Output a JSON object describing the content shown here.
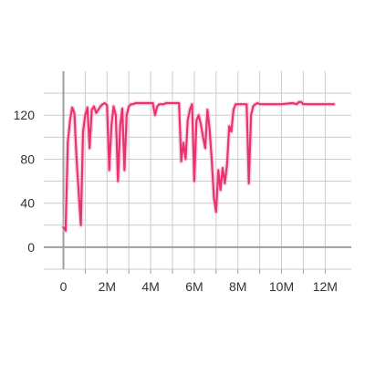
{
  "chart_data": {
    "type": "line",
    "title": "",
    "xlabel": "",
    "ylabel": "",
    "xlim": [
      -900000,
      13200000
    ],
    "ylim": [
      -20,
      160
    ],
    "x_ticks": [
      0,
      2000000,
      4000000,
      6000000,
      8000000,
      10000000,
      12000000
    ],
    "x_tick_labels": [
      "0",
      "2M",
      "4M",
      "6M",
      "8M",
      "10M",
      "12M"
    ],
    "x_minor_ticks": [
      -1000000,
      1000000,
      3000000,
      5000000,
      7000000,
      9000000,
      11000000
    ],
    "y_ticks": [
      0,
      40,
      80,
      120
    ],
    "y_tick_labels": [
      "0",
      "40",
      "80",
      "120"
    ],
    "y_minor_ticks": [
      20,
      60,
      100,
      140
    ],
    "grid": true,
    "colors": {
      "smoothed": "#e8336d",
      "raw": "#f6c4d6",
      "axis": "#9e9e9e",
      "grid": "#cccccc"
    },
    "series": [
      {
        "x": [
          0,
          100000,
          200000,
          300000,
          400000,
          500000,
          600000,
          700000,
          800000,
          900000,
          1000000,
          1100000,
          1200000,
          1300000,
          1400000,
          1500000,
          1600000,
          1700000,
          1800000,
          1900000,
          2000000,
          2100000,
          2200000,
          2300000,
          2400000,
          2500000,
          2600000,
          2700000,
          2800000,
          2900000,
          3000000,
          3100000,
          3200000,
          3300000,
          3400000,
          3500000,
          3600000,
          3700000,
          3800000,
          3900000,
          4000000,
          4100000,
          4200000,
          4300000,
          4400000,
          4500000,
          4600000,
          4700000,
          4800000,
          4900000,
          5000000,
          5100000,
          5200000,
          5300000,
          5400000,
          5500000,
          5600000,
          5700000,
          5800000,
          5900000,
          6000000,
          6100000,
          6200000,
          6300000,
          6400000,
          6500000,
          6600000,
          6700000,
          6800000,
          6900000,
          7000000,
          7100000,
          7200000,
          7300000,
          7400000,
          7500000,
          7600000,
          7700000,
          7800000,
          7900000,
          8000000,
          8100000,
          8200000,
          8300000,
          8400000,
          8500000,
          8600000,
          8700000,
          8800000,
          8900000,
          9000000,
          9500000,
          10000000,
          10500000,
          10700000,
          10800000,
          10900000,
          11000000,
          11500000,
          12000000,
          12400000
        ],
        "y": [
          18,
          15,
          95,
          115,
          127,
          122,
          80,
          50,
          20,
          105,
          120,
          127,
          90,
          125,
          128,
          122,
          125,
          128,
          130,
          131,
          129,
          70,
          110,
          128,
          120,
          60,
          110,
          126,
          70,
          120,
          128,
          130,
          130,
          131,
          131,
          131,
          131,
          131,
          131,
          131,
          131,
          131,
          120,
          128,
          130,
          130,
          130,
          131,
          131,
          131,
          131,
          131,
          131,
          131,
          78,
          95,
          80,
          115,
          125,
          130,
          60,
          115,
          120,
          112,
          100,
          90,
          125,
          108,
          80,
          45,
          32,
          70,
          52,
          72,
          58,
          75,
          110,
          105,
          125,
          130,
          130,
          130,
          130,
          130,
          130,
          58,
          120,
          128,
          130,
          131,
          130,
          130,
          130,
          131,
          130,
          132,
          132,
          130,
          130,
          130,
          130
        ]
      }
    ]
  }
}
